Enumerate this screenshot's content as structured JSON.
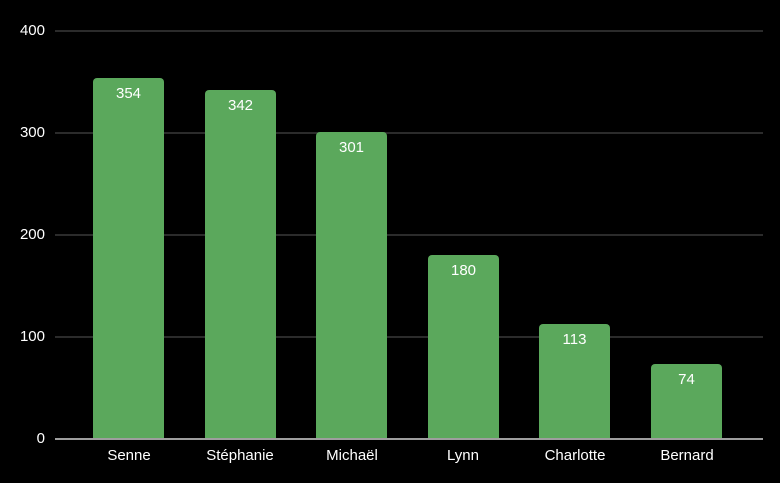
{
  "chart_data": {
    "type": "bar",
    "title": "",
    "xlabel": "",
    "ylabel": "",
    "categories": [
      "Senne",
      "Stéphanie",
      "Michaël",
      "Lynn",
      "Charlotte",
      "Bernard"
    ],
    "values": [
      354,
      342,
      301,
      180,
      113,
      74
    ],
    "data_labels_shown": true,
    "ylim": [
      0,
      400
    ],
    "yticks": [
      0,
      100,
      200,
      300,
      400
    ],
    "grid": true,
    "legend_position": "none",
    "colors": {
      "background": "#000000",
      "bar": "#5ba85c",
      "gridline": "#2b2b2b",
      "axis_line": "#9e9e9e",
      "text": "#ffffff"
    }
  }
}
